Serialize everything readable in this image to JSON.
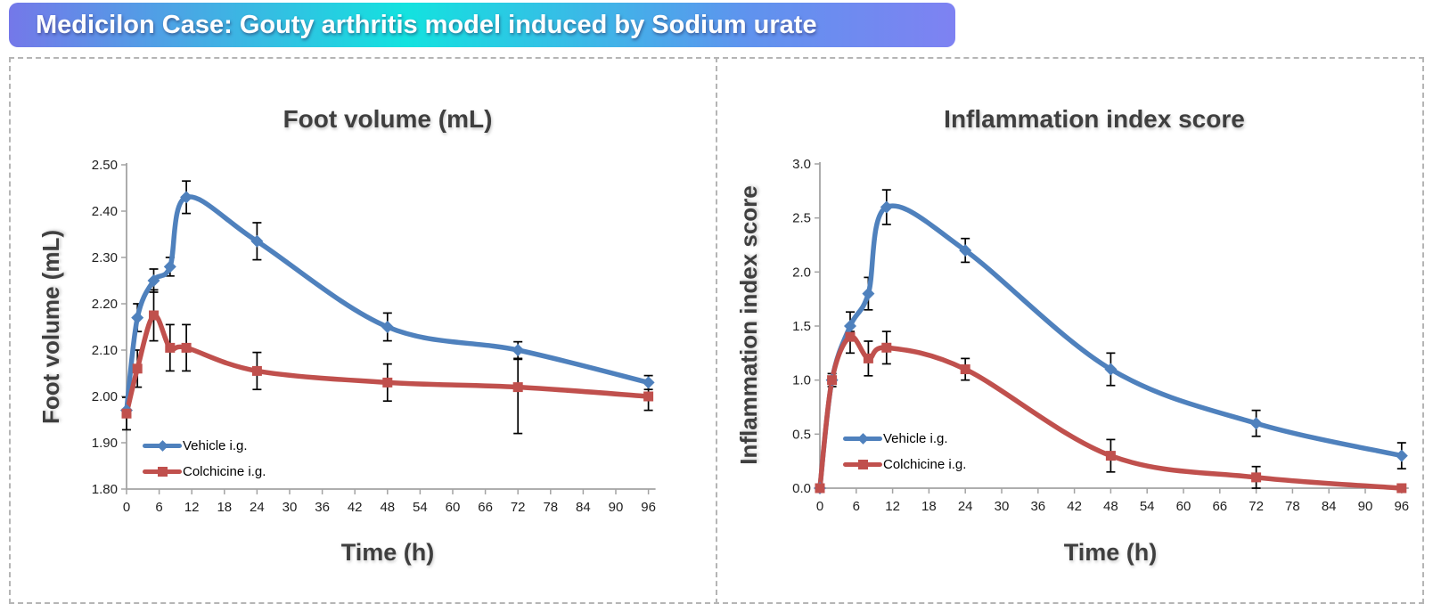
{
  "banner": {
    "title": "Medicilon Case: Gouty arthritis model induced by Sodium urate",
    "gradient": [
      "#7478e9",
      "#13e2df",
      "#5f93ee",
      "#7e82f2"
    ]
  },
  "colors": {
    "vehicle": "#4f81bd",
    "colchicine": "#c0504d",
    "title_text": "#3f3f3f",
    "tick_text": "#1f1f1f",
    "axis_line": "#a3a3a3",
    "error_bar": "#000000",
    "panel_border": "#b5b5b5"
  },
  "chart_data": [
    {
      "type": "line",
      "title": "Foot volume (mL)",
      "ylabel": "Foot volume (mL)",
      "xlabel": "Time (h)",
      "x": [
        0,
        2,
        5,
        8,
        11,
        24,
        48,
        72,
        96
      ],
      "xticks": [
        0,
        6,
        12,
        18,
        24,
        30,
        36,
        42,
        48,
        54,
        60,
        66,
        72,
        78,
        84,
        90,
        96
      ],
      "xlim": [
        0,
        96
      ],
      "ylim": [
        1.8,
        2.5
      ],
      "ytick_step": 0.1,
      "ytick_decimals": 2,
      "grid": false,
      "smoothed": true,
      "legend_position": "inside-lower-left",
      "series": [
        {
          "name": "Vehicle i.g.",
          "color": "#4f81bd",
          "marker": "diamond",
          "values": [
            1.97,
            2.17,
            2.25,
            2.28,
            2.43,
            2.335,
            2.15,
            2.1,
            2.03
          ],
          "errors": [
            0,
            0.03,
            0.025,
            0.02,
            0.035,
            0.04,
            0.03,
            0.018,
            0.015
          ]
        },
        {
          "name": "Colchicine i.g.",
          "color": "#c0504d",
          "marker": "square",
          "values": [
            1.963,
            2.06,
            2.175,
            2.105,
            2.105,
            2.055,
            2.03,
            2.02,
            2.0
          ],
          "errors": [
            0.035,
            0.04,
            0.055,
            0.05,
            0.05,
            0.04,
            0.04,
            [
              0.06,
              0.1
            ],
            0.03
          ]
        }
      ]
    },
    {
      "type": "line",
      "title": "Inflammation index score",
      "ylabel": "Inflammation index score",
      "xlabel": "Time (h)",
      "x": [
        0,
        2,
        5,
        8,
        11,
        24,
        48,
        72,
        96
      ],
      "xticks": [
        0,
        6,
        12,
        18,
        24,
        30,
        36,
        42,
        48,
        54,
        60,
        66,
        72,
        78,
        84,
        90,
        96
      ],
      "xlim": [
        0,
        96
      ],
      "ylim": [
        0.0,
        3.0
      ],
      "ytick_step": 0.5,
      "ytick_decimals": 1,
      "grid": false,
      "smoothed": true,
      "legend_position": "inside-lower-left",
      "series": [
        {
          "name": "Vehicle i.g.",
          "color": "#4f81bd",
          "marker": "diamond",
          "values": [
            0.0,
            1.0,
            1.5,
            1.8,
            2.6,
            2.2,
            1.1,
            0.6,
            0.3
          ],
          "errors": [
            0,
            0,
            0.13,
            0.15,
            0.16,
            0.11,
            0.15,
            0.12,
            0.12
          ]
        },
        {
          "name": "Colchicine i.g.",
          "color": "#c0504d",
          "marker": "square",
          "values": [
            0.0,
            1.0,
            1.4,
            1.2,
            1.3,
            1.1,
            0.3,
            0.1,
            0.0
          ],
          "errors": [
            0,
            0.06,
            [
              0.05,
              0.15
            ],
            0.16,
            0.15,
            0.1,
            0.15,
            0.1,
            0
          ]
        }
      ]
    }
  ]
}
